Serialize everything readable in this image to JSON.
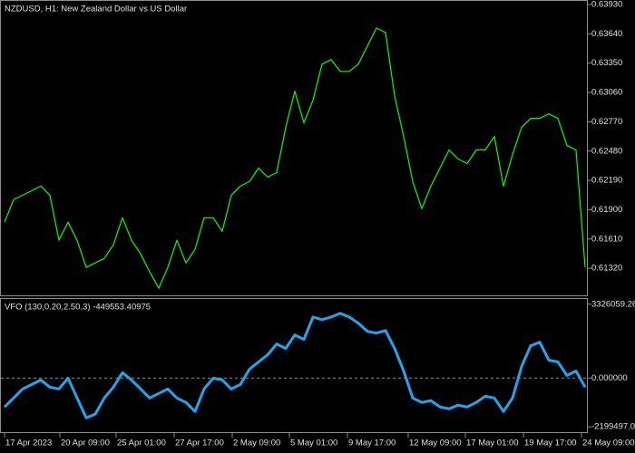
{
  "chart_data": [
    {
      "type": "line",
      "title": "NZDUSD, H1:  New Zealand Dollar vs US Dollar",
      "color": "#00ff00",
      "values": [
        0.61776,
        0.61999,
        0.62044,
        0.62088,
        0.62133,
        0.62044,
        0.61597,
        0.61776,
        0.61597,
        0.61329,
        0.61373,
        0.61418,
        0.61552,
        0.6182,
        0.61597,
        0.61463,
        0.61284,
        0.61123,
        0.61329,
        0.61597,
        0.61373,
        0.61507,
        0.6182,
        0.6182,
        0.61686,
        0.62044,
        0.62133,
        0.62178,
        0.62312,
        0.62222,
        0.62267,
        0.62714,
        0.63072,
        0.62759,
        0.62982,
        0.6334,
        0.63385,
        0.63268,
        0.63268,
        0.6334,
        0.63519,
        0.63698,
        0.63653,
        0.63027,
        0.62625,
        0.62178,
        0.6191,
        0.62133,
        0.62312,
        0.62491,
        0.62401,
        0.62357,
        0.62491,
        0.62491,
        0.62625,
        0.62133,
        0.62446,
        0.62714,
        0.62804,
        0.62804,
        0.62848,
        0.62804,
        0.62535,
        0.62491,
        0.61329
      ],
      "xlim": [
        0,
        64
      ],
      "ylim": [
        0.61052,
        0.63966
      ],
      "yticks": [
        {
          "value": 0.6393,
          "label": "0.63930"
        },
        {
          "value": 0.6364,
          "label": "0.63640"
        },
        {
          "value": 0.6335,
          "label": "0.63350"
        },
        {
          "value": 0.6306,
          "label": "0.63060"
        },
        {
          "value": 0.6277,
          "label": "0.62770"
        },
        {
          "value": 0.6248,
          "label": "0.62480"
        },
        {
          "value": 0.6219,
          "label": "0.62190"
        },
        {
          "value": 0.619,
          "label": "0.61900"
        },
        {
          "value": 0.6161,
          "label": "0.61610"
        },
        {
          "value": 0.6132,
          "label": "0.61320"
        }
      ]
    },
    {
      "type": "line",
      "title": "VFO (130,0.20,2.50,3) -449553.40975",
      "color": "#1ea7ef",
      "values": [
        -1302400,
        -897200,
        -492000,
        -289400,
        -86800,
        -410960,
        -492000,
        -5760,
        -897200,
        -1788640,
        -1626560,
        -897200,
        -410960,
        237360,
        -86800,
        -492000,
        -897200,
        -694600,
        -492000,
        -897200,
        -1099800,
        -1505000,
        -492000,
        -5760,
        -86800,
        -492000,
        -289400,
        399440,
        723600,
        1047760,
        1534000,
        1331400,
        1939200,
        1736600,
        2749600,
        2628040,
        2749600,
        2911680,
        2749600,
        2465960,
        2101280,
        2020240,
        2141800,
        1331400,
        318400,
        -897200,
        -1099800,
        -1018760,
        -1302400,
        -1383440,
        -1221360,
        -1302400,
        -1099800,
        -816160,
        -897200,
        -1505000,
        -897200,
        521000,
        1452960,
        1615040,
        804640,
        723600,
        115800,
        318400,
        -410960
      ],
      "xlim": [
        0,
        64
      ],
      "ylim": [
        -2437000,
        3560000
      ],
      "yticks": [
        3326059.26,
        {
          "value": 0,
          "label": "0.000000"
        },
        {
          "value": -2199497,
          "label": "-2199497.00"
        }
      ],
      "xticks": [
        {
          "value": 0,
          "label": "17 Apr 2023"
        },
        {
          "value": 6.1,
          "label": "20 Apr 09:00"
        },
        {
          "value": 12.3,
          "label": "25 Apr 01:00"
        },
        {
          "value": 18.7,
          "label": "27 Apr 17:00"
        },
        {
          "value": 25.1,
          "label": "2 May 09:00"
        },
        {
          "value": 31.4,
          "label": "5 May 01:00"
        },
        {
          "value": 37.8,
          "label": "9 May 17:00"
        },
        {
          "value": 44.5,
          "label": "12 May 09:00"
        },
        {
          "value": 50.8,
          "label": "17 May 01:00"
        },
        {
          "value": 57.2,
          "label": "19 May 17:00"
        },
        {
          "value": 63.6,
          "label": "24 May 09:00"
        }
      ]
    }
  ]
}
